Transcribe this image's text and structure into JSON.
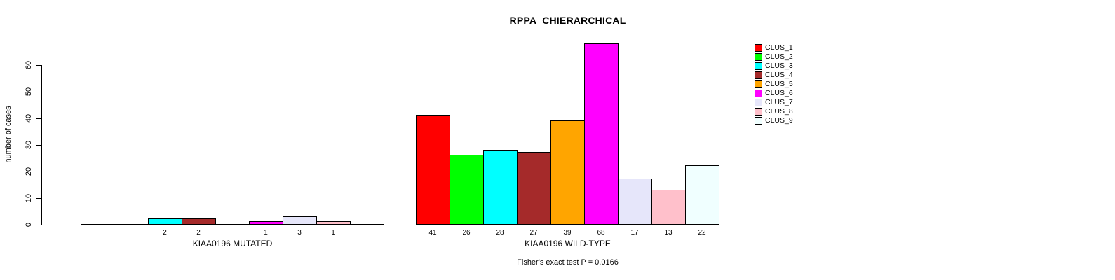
{
  "chart_data": {
    "type": "bar",
    "title": "RPPA_CHIERARCHICAL",
    "ylabel": "number of cases",
    "ylim": [
      0,
      68
    ],
    "yticks": [
      0,
      10,
      20,
      30,
      40,
      50,
      60
    ],
    "grid": false,
    "legend_position": "right-outside",
    "series_labels": [
      "CLUS_1",
      "CLUS_2",
      "CLUS_3",
      "CLUS_4",
      "CLUS_5",
      "CLUS_6",
      "CLUS_7",
      "CLUS_8",
      "CLUS_9"
    ],
    "colors": [
      "#ff0000",
      "#00ff00",
      "#00ffff",
      "#a52a2a",
      "#ffa500",
      "#ff00ff",
      "#e6e6fa",
      "#ffc0cb",
      "#f0ffff"
    ],
    "groups": [
      {
        "label": "KIAA0196 MUTATED",
        "values": [
          0,
          0,
          2,
          2,
          0,
          1,
          3,
          1,
          0
        ]
      },
      {
        "label": "KIAA0196 WILD-TYPE",
        "values": [
          41,
          26,
          28,
          27,
          39,
          68,
          17,
          13,
          22
        ]
      }
    ],
    "annotation": "Fisher's exact test P = 0.0166"
  }
}
